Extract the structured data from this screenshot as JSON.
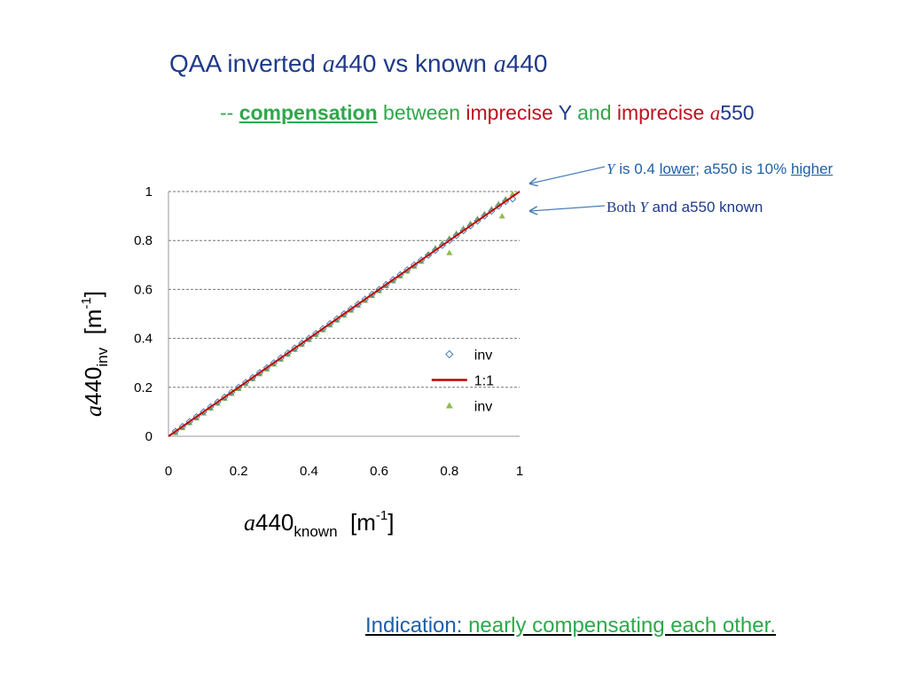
{
  "slide": {
    "title": {
      "part1": "QAA inverted ",
      "var1": "a",
      "part2": "440 vs known ",
      "var2": "a",
      "part3": "440"
    },
    "subtitle": {
      "dash": "-- ",
      "w1": "compensation",
      "w2": " between ",
      "w3": "imprecise",
      "w4": " Y ",
      "w5": "and",
      "w6": " imprecise ",
      "w7": "a",
      "w8": "550"
    },
    "annotation1": {
      "var": "Y",
      "t1": " is 0.4 ",
      "t2": "lower",
      "t3": "; a550 is 10% ",
      "t4": "higher"
    },
    "annotation2": {
      "t1": "Both ",
      "var": "Y",
      "t2": " and a550 known"
    },
    "ylabel": {
      "var": "a",
      "main": "440",
      "sub": "inv",
      "unit1": "  [m",
      "sup": "-1",
      "unit2": "]"
    },
    "xlabel": {
      "var": "a",
      "main": "440",
      "sub": "known",
      "unit1": "  [m",
      "sup": "-1",
      "unit2": "]"
    },
    "bottom": {
      "t1": "Indication: ",
      "t2": "nearly compensating each other."
    },
    "colors": {
      "title": "#1f3a8a",
      "green": "#2ea84a",
      "red": "#c0101e",
      "link_blue": "#1f5fa8"
    }
  },
  "chart_data": {
    "type": "scatter",
    "xlim": [
      0,
      1
    ],
    "ylim": [
      0,
      1
    ],
    "x_ticks": [
      "0",
      "0.2",
      "0.4",
      "0.6",
      "0.8",
      "1"
    ],
    "y_ticks": [
      "0",
      "0.2",
      "0.4",
      "0.6",
      "0.8",
      "1"
    ],
    "grid": "horizontal dashed",
    "legend_position": "lower-right",
    "series": [
      {
        "name": "inv",
        "marker": "diamond-open",
        "color": "#4a7eb8",
        "x": [
          0.02,
          0.04,
          0.06,
          0.08,
          0.1,
          0.12,
          0.14,
          0.16,
          0.18,
          0.2,
          0.22,
          0.24,
          0.26,
          0.28,
          0.3,
          0.32,
          0.34,
          0.36,
          0.38,
          0.4,
          0.42,
          0.44,
          0.46,
          0.48,
          0.5,
          0.52,
          0.54,
          0.56,
          0.58,
          0.6,
          0.62,
          0.64,
          0.66,
          0.68,
          0.7,
          0.72,
          0.74,
          0.76,
          0.78,
          0.8,
          0.82,
          0.84,
          0.86,
          0.88,
          0.9,
          0.92,
          0.94,
          0.96,
          0.98
        ],
        "y": [
          0.02,
          0.04,
          0.06,
          0.08,
          0.1,
          0.12,
          0.14,
          0.16,
          0.18,
          0.2,
          0.22,
          0.24,
          0.26,
          0.28,
          0.3,
          0.32,
          0.34,
          0.36,
          0.38,
          0.4,
          0.42,
          0.44,
          0.46,
          0.48,
          0.5,
          0.52,
          0.54,
          0.56,
          0.58,
          0.6,
          0.62,
          0.64,
          0.66,
          0.68,
          0.7,
          0.72,
          0.74,
          0.76,
          0.78,
          0.8,
          0.82,
          0.84,
          0.86,
          0.88,
          0.9,
          0.92,
          0.94,
          0.96,
          0.97
        ]
      },
      {
        "name": "1:1",
        "marker": "line",
        "color": "#c00000",
        "x": [
          0,
          1
        ],
        "y": [
          0,
          1
        ]
      },
      {
        "name": "inv",
        "marker": "triangle",
        "color": "#8fbc4f",
        "x": [
          0.02,
          0.04,
          0.06,
          0.08,
          0.1,
          0.12,
          0.14,
          0.16,
          0.18,
          0.2,
          0.22,
          0.24,
          0.26,
          0.28,
          0.3,
          0.32,
          0.34,
          0.36,
          0.38,
          0.4,
          0.42,
          0.44,
          0.46,
          0.48,
          0.5,
          0.52,
          0.54,
          0.56,
          0.58,
          0.6,
          0.62,
          0.64,
          0.66,
          0.68,
          0.7,
          0.72,
          0.74,
          0.76,
          0.78,
          0.8,
          0.82,
          0.84,
          0.86,
          0.88,
          0.9,
          0.92,
          0.94,
          0.96,
          0.98,
          0.8,
          0.95
        ],
        "y": [
          0.015,
          0.035,
          0.055,
          0.075,
          0.095,
          0.115,
          0.135,
          0.155,
          0.175,
          0.195,
          0.215,
          0.235,
          0.255,
          0.275,
          0.295,
          0.315,
          0.335,
          0.355,
          0.375,
          0.395,
          0.415,
          0.435,
          0.455,
          0.475,
          0.495,
          0.515,
          0.535,
          0.555,
          0.575,
          0.595,
          0.615,
          0.635,
          0.655,
          0.675,
          0.695,
          0.715,
          0.745,
          0.77,
          0.79,
          0.81,
          0.83,
          0.85,
          0.87,
          0.89,
          0.91,
          0.93,
          0.95,
          0.97,
          0.99,
          0.75,
          0.9
        ]
      }
    ]
  }
}
